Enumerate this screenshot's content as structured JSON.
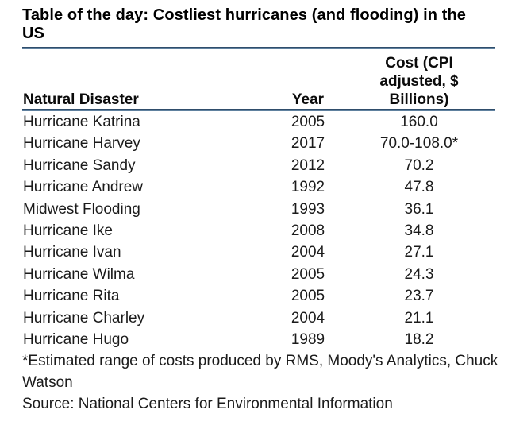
{
  "title": "Table of the day: Costliest hurricanes (and flooding) in the US",
  "chart_data": {
    "type": "table",
    "title": "Table of the day: Costliest hurricanes (and flooding) in the US",
    "columns": [
      "Natural Disaster",
      "Year",
      "Cost (CPI adjusted, $ Billions)"
    ],
    "rows": [
      [
        "Hurricane Katrina",
        "2005",
        "160.0"
      ],
      [
        "Hurricane Harvey",
        "2017",
        "70.0-108.0*"
      ],
      [
        "Hurricane Sandy",
        "2012",
        "70.2"
      ],
      [
        "Hurricane Andrew",
        "1992",
        "47.8"
      ],
      [
        "Midwest Flooding",
        "1993",
        "36.1"
      ],
      [
        "Hurricane Ike",
        "2008",
        "34.8"
      ],
      [
        "Hurricane Ivan",
        "2004",
        "27.1"
      ],
      [
        "Hurricane Wilma",
        "2005",
        "24.3"
      ],
      [
        "Hurricane Rita",
        "2005",
        "23.7"
      ],
      [
        "Hurricane Charley",
        "2004",
        "21.1"
      ],
      [
        "Hurricane Hugo",
        "1989",
        "18.2"
      ]
    ],
    "footnote": "*Estimated range of costs produced by RMS, Moody's Analytics, Chuck Watson",
    "source": "Source: National Centers for Environmental Information"
  },
  "colors": {
    "rule_top": "#2f4d6b",
    "rule_middle": "#c3cfdb",
    "rule_bottom": "#60819f",
    "title_text": "#000000",
    "header_text": "#0b0b0b",
    "body_text": "#1b1b1b"
  }
}
